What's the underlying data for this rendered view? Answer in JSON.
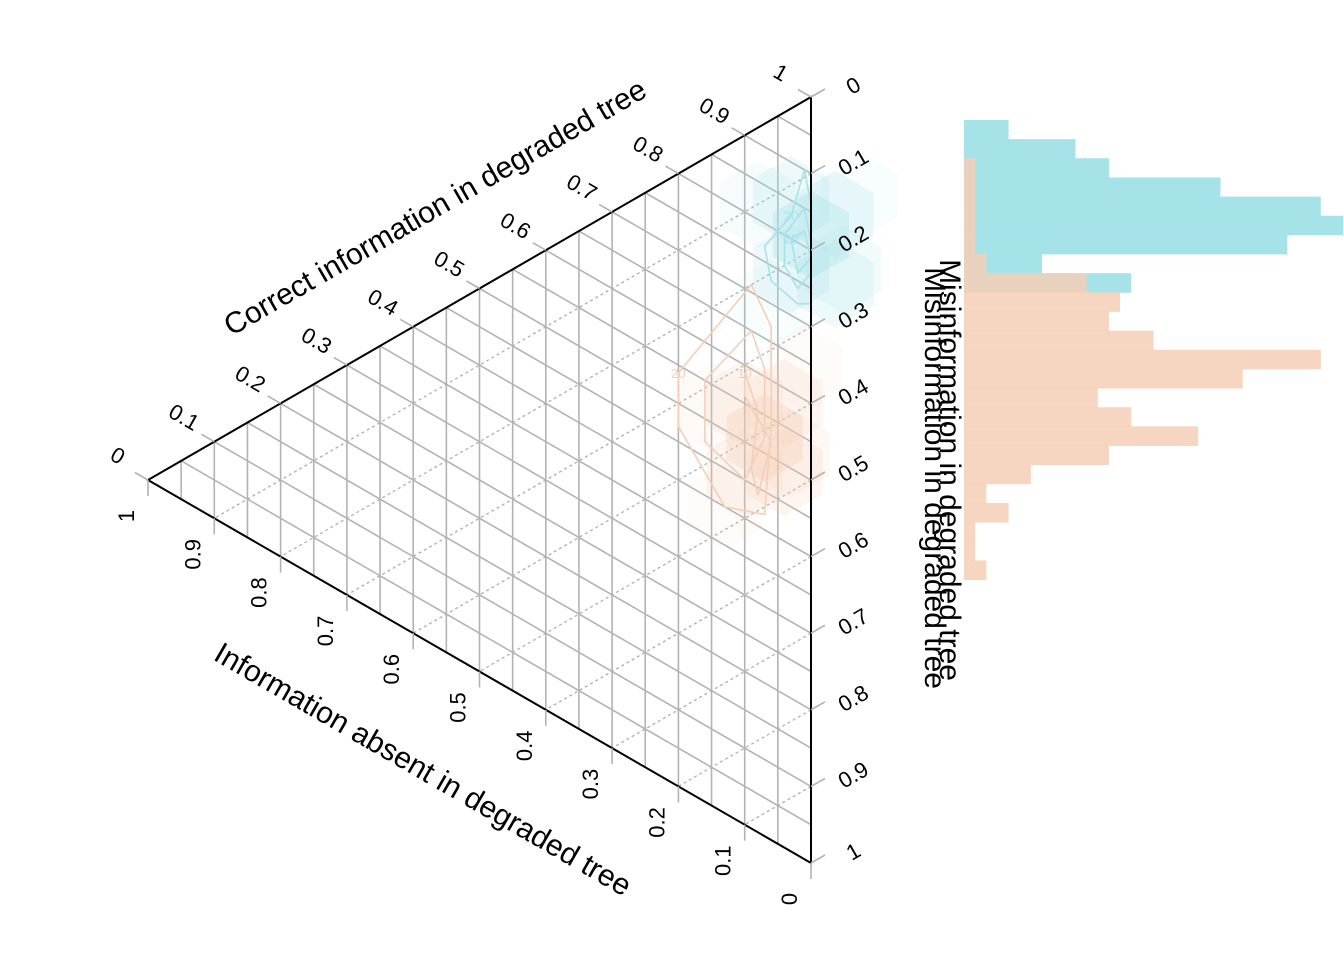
{
  "chart_data": [
    {
      "type": "ternary-contour",
      "axes": {
        "correct": {
          "label": "Correct information in degraded tree",
          "range": [
            0,
            1
          ]
        },
        "absent": {
          "label": "Information absent in degraded tree",
          "range": [
            0,
            1
          ]
        },
        "misinformation": {
          "label": "Misinformation in degraded tree",
          "range": [
            0,
            1
          ]
        }
      },
      "ticks": [
        "0",
        "0.1",
        "0.2",
        "0.3",
        "0.4",
        "0.5",
        "0.6",
        "0.7",
        "0.8",
        "0.9",
        "1"
      ],
      "grid": true,
      "series": [
        {
          "color": "#a6e3e9",
          "density_peak": {
            "correct": 0.82,
            "absent": 0.0,
            "misinformation": 0.18
          },
          "contours": [
            {
              "level": "20",
              "points": [
                [
                  0.83,
                  0.03,
                  0.14
                ],
                [
                  0.9,
                  0.01,
                  0.09
                ],
                [
                  0.86,
                  0.0,
                  0.14
                ],
                [
                  0.81,
                  0.0,
                  0.19
                ],
                [
                  0.73,
                  0.0,
                  0.27
                ],
                [
                  0.72,
                  0.02,
                  0.26
                ],
                [
                  0.73,
                  0.06,
                  0.21
                ],
                [
                  0.77,
                  0.07,
                  0.16
                ]
              ]
            },
            {
              "level": "",
              "points": [
                [
                  0.8,
                  0.04,
                  0.16
                ],
                [
                  0.85,
                  0.01,
                  0.14
                ],
                [
                  0.81,
                  0.0,
                  0.19
                ],
                [
                  0.77,
                  0.0,
                  0.23
                ],
                [
                  0.74,
                  0.02,
                  0.24
                ],
                [
                  0.76,
                  0.04,
                  0.2
                ]
              ]
            },
            {
              "level": "20",
              "points": [
                [
                  0.8,
                  0.03,
                  0.17
                ],
                [
                  0.82,
                  0.01,
                  0.17
                ],
                [
                  0.79,
                  0.0,
                  0.21
                ],
                [
                  0.76,
                  0.02,
                  0.22
                ]
              ]
            }
          ]
        },
        {
          "color": "#f5cfb5",
          "density_peak": {
            "correct": 0.52,
            "absent": 0.07,
            "misinformation": 0.41
          },
          "contours": [
            {
              "level": "20",
              "points": [
                [
                  0.54,
                  0.2,
                  0.26
                ],
                [
                  0.71,
                  0.09,
                  0.2
                ],
                [
                  0.67,
                  0.06,
                  0.27
                ],
                [
                  0.54,
                  0.06,
                  0.4
                ],
                [
                  0.42,
                  0.07,
                  0.51
                ],
                [
                  0.4,
                  0.13,
                  0.47
                ],
                [
                  0.47,
                  0.2,
                  0.33
                ]
              ]
            },
            {
              "level": "",
              "points": [
                [
                  0.55,
                  0.16,
                  0.29
                ],
                [
                  0.65,
                  0.09,
                  0.26
                ],
                [
                  0.61,
                  0.07,
                  0.32
                ],
                [
                  0.52,
                  0.07,
                  0.41
                ],
                [
                  0.45,
                  0.1,
                  0.45
                ],
                [
                  0.47,
                  0.16,
                  0.37
                ]
              ]
            },
            {
              "level": "10",
              "points": [
                [
                  0.59,
                  0.1,
                  0.31
                ],
                [
                  0.55,
                  0.08,
                  0.37
                ],
                [
                  0.47,
                  0.09,
                  0.44
                ],
                [
                  0.44,
                  0.08,
                  0.48
                ],
                [
                  0.52,
                  0.06,
                  0.42
                ],
                [
                  0.56,
                  0.1,
                  0.34
                ]
              ]
            }
          ]
        }
      ]
    },
    {
      "type": "histogram",
      "orientation": "horizontal",
      "bin_axis": "Misinformation in degraded tree",
      "bin_range": [
        0,
        1
      ],
      "bin_edges": [
        0.03,
        0.055,
        0.08,
        0.105,
        0.13,
        0.155,
        0.18,
        0.205,
        0.23,
        0.255,
        0.28,
        0.305,
        0.33,
        0.355,
        0.38,
        0.405,
        0.43,
        0.455,
        0.48,
        0.505,
        0.53,
        0.555,
        0.58,
        0.605,
        0.63
      ],
      "series": [
        {
          "color": "#a6e3e9",
          "counts": [
            4,
            10,
            13,
            23,
            32,
            34,
            29,
            7,
            15,
            0,
            0,
            0,
            0,
            0,
            0,
            0,
            0,
            0,
            0,
            0,
            0,
            0,
            0,
            0
          ]
        },
        {
          "color": "#f5cfb5",
          "counts": [
            0,
            0,
            1,
            1,
            1,
            1,
            1,
            2,
            11,
            14,
            13,
            17,
            32,
            25,
            12,
            15,
            21,
            13,
            6,
            2,
            4,
            1,
            1,
            2
          ]
        }
      ]
    }
  ]
}
